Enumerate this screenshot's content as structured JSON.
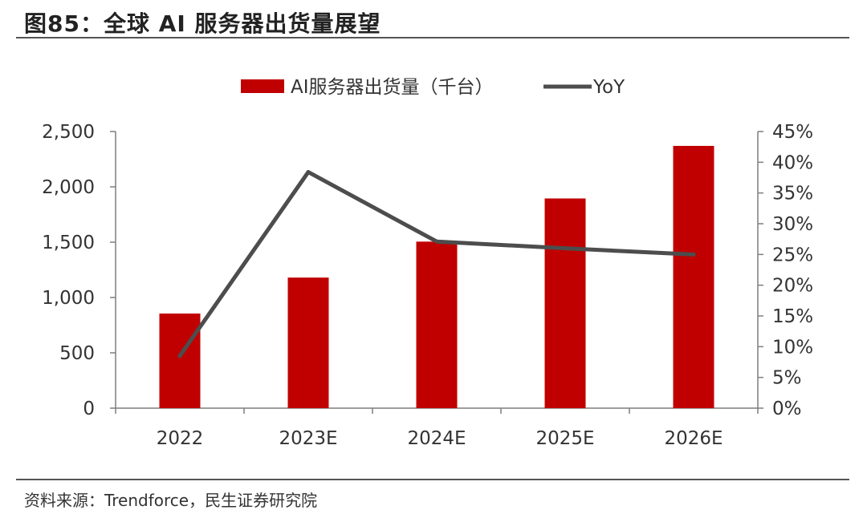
{
  "header": {
    "title": "图85：全球 AI 服务器出货量展望"
  },
  "footer": {
    "source": "资料来源：Trendforce，民生证券研究院"
  },
  "chart_data": {
    "type": "bar",
    "categories": [
      "2022",
      "2023E",
      "2024E",
      "2025E",
      "2026E"
    ],
    "series": [
      {
        "name": "AI服务器出货量（千台）",
        "type": "bar",
        "axis": "left",
        "color": "#c00000",
        "values": [
          855,
          1180,
          1505,
          1895,
          2370
        ]
      },
      {
        "name": "YoY",
        "type": "line",
        "axis": "right",
        "color": "#4d4d4d",
        "values": [
          8.5,
          38.4,
          27.1,
          26.0,
          25.0
        ]
      }
    ],
    "left_axis": {
      "ylim": [
        0,
        2500
      ],
      "ticks": [
        0,
        500,
        1000,
        1500,
        2000,
        2500
      ],
      "tick_labels": [
        "0",
        "500",
        "1,000",
        "1,500",
        "2,000",
        "2,500"
      ]
    },
    "right_axis": {
      "ylim": [
        0,
        45
      ],
      "ticks": [
        0,
        5,
        10,
        15,
        20,
        25,
        30,
        35,
        40,
        45
      ],
      "tick_labels": [
        "0%",
        "5%",
        "10%",
        "15%",
        "20%",
        "25%",
        "30%",
        "35%",
        "40%",
        "45%"
      ]
    },
    "legend_position": "top-center",
    "grid": false
  }
}
